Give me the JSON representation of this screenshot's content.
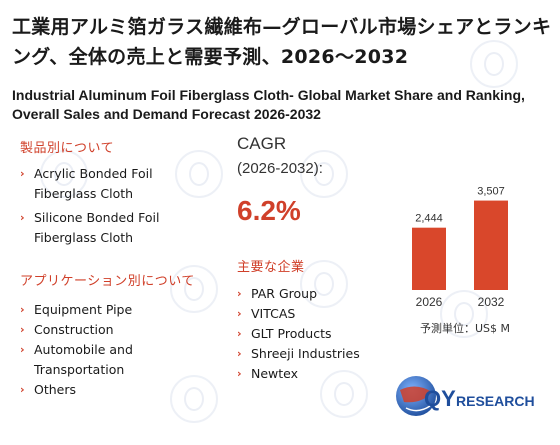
{
  "title_jp": "工業用アルミ箔ガラス繊維布—グローバル市場シェアとランキング、全体の売上と需要予測、2026～2032",
  "title_en": "Industrial Aluminum Foil Fiberglass Cloth- Global Market Share and Ranking, Overall Sales and Demand Forecast 2026-2032",
  "product_section": {
    "heading": "製品別について",
    "items": [
      "Acrylic Bonded Foil Fiberglass Cloth",
      "Silicone Bonded Foil Fiberglass Cloth"
    ]
  },
  "application_section": {
    "heading": "アプリケーション別について",
    "items": [
      "Equipment Pipe",
      "Construction",
      "Automobile and Transportation",
      "Others"
    ]
  },
  "cagr": {
    "label": "CAGR",
    "period": "(2026-2032):",
    "value": "6.2%"
  },
  "companies_section": {
    "heading": "主要な企業",
    "items": [
      "PAR Group",
      "VITCAS",
      "GLT Products",
      "Shreeji Industries",
      "Newtex"
    ]
  },
  "chart_data": {
    "type": "bar",
    "categories": [
      "2026",
      "2032"
    ],
    "values": [
      2444,
      3507
    ],
    "value_labels": [
      "2,444",
      "3,507"
    ],
    "unit_label": "予測単位：US$ M",
    "ylim": [
      0,
      4000
    ],
    "bar_color": "#d9472b"
  },
  "logo": {
    "text_q": "QY",
    "text_rest": "RESEARCH",
    "brand_color": "#1f4e9c",
    "accent_color": "#d0402a"
  },
  "arrow_glyph": "›"
}
